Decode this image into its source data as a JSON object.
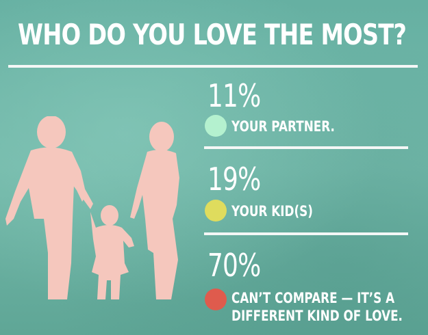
{
  "chart_data": {
    "type": "bar",
    "title": "WHO DO YOU LOVE THE MOST?",
    "categories": [
      "YOUR PARTNER.",
      "YOUR KID(S)",
      "CAN’T COMPARE — IT’S A DIFFERENT KIND OF LOVE."
    ],
    "values": [
      11,
      19,
      70
    ],
    "unit": "%",
    "items": [
      {
        "pct_label": "11%",
        "label_lines": [
          "YOUR PARTNER."
        ],
        "color": "#b4f1cf"
      },
      {
        "pct_label": "19%",
        "label_lines": [
          "YOUR KID(S)"
        ],
        "color": "#dfdc5d"
      },
      {
        "pct_label": "70%",
        "label_lines": [
          "CAN’T COMPARE — IT’S A",
          "DIFFERENT KIND OF LOVE."
        ],
        "color": "#df5b4d"
      }
    ]
  },
  "colors": {
    "background": "#6cb3a5",
    "text": "#ffffff",
    "silhouette": "#f5c7bd"
  },
  "illustration": "family-silhouette-icon"
}
